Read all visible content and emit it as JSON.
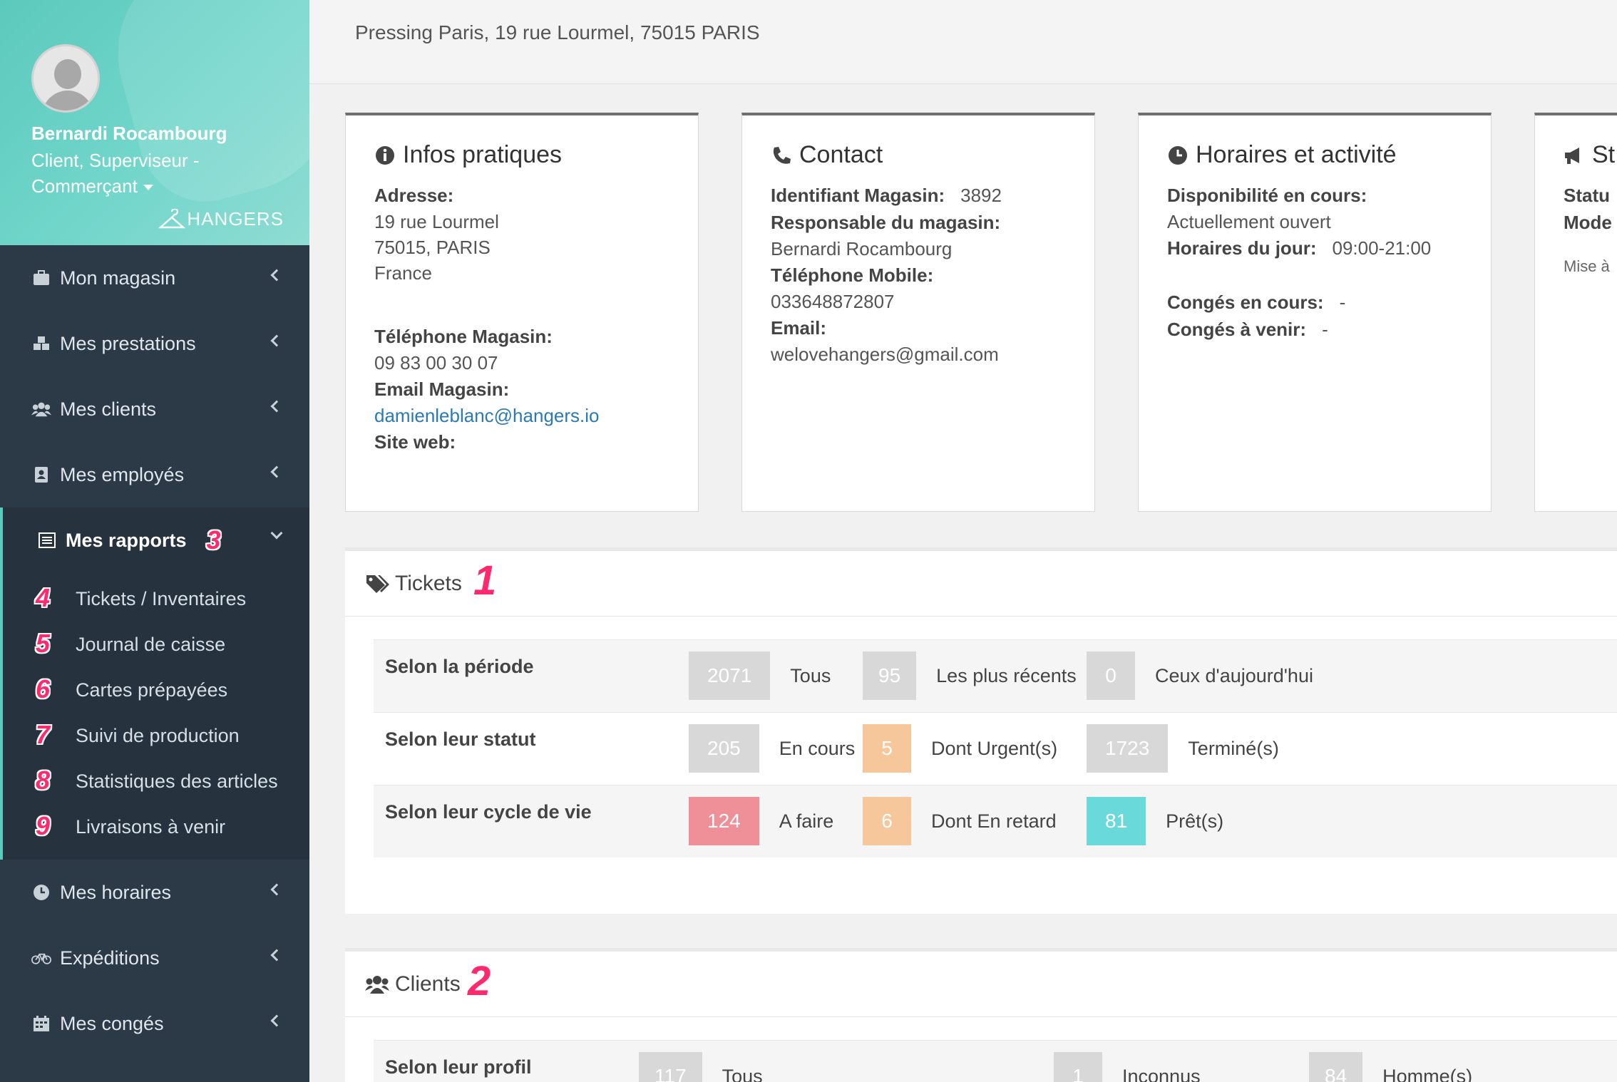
{
  "user": {
    "name": "Bernardi Rocambourg",
    "role_line1": "Client, Superviseur -",
    "role_line2": "Commerçant",
    "brand": "HANGERS"
  },
  "nav": {
    "mon_magasin": "Mon magasin",
    "mes_prestations": "Mes prestations",
    "mes_clients": "Mes clients",
    "mes_employes": "Mes employés",
    "mes_rapports": "Mes rapports",
    "mes_rapports_badge": "3",
    "sub": [
      {
        "badge": "4",
        "label": "Tickets / Inventaires"
      },
      {
        "badge": "5",
        "label": "Journal de caisse"
      },
      {
        "badge": "6",
        "label": "Cartes prépayées"
      },
      {
        "badge": "7",
        "label": "Suivi de production"
      },
      {
        "badge": "8",
        "label": "Statistiques des articles"
      },
      {
        "badge": "9",
        "label": "Livraisons à venir"
      }
    ],
    "mes_horaires": "Mes horaires",
    "expeditions": "Expéditions",
    "mes_conges": "Mes congés"
  },
  "header": {
    "address": "Pressing Paris, 19 rue Lourmel, 75015 PARIS"
  },
  "infos": {
    "title": "Infos pratiques",
    "adresse_label": "Adresse:",
    "adresse_l1": "19 rue Lourmel",
    "adresse_l2": "75015, PARIS",
    "adresse_l3": "France",
    "tel_label": "Téléphone Magasin:",
    "tel_value": "09 83 00 30 07",
    "email_label": "Email Magasin:",
    "email_value": "damienleblanc@hangers.io",
    "site_label": "Site web:"
  },
  "contact": {
    "title": "Contact",
    "id_label": "Identifiant Magasin:",
    "id_value": "3892",
    "resp_label": "Responsable du magasin:",
    "resp_value": "Bernardi Rocambourg",
    "mobile_label": "Téléphone Mobile:",
    "mobile_value": "033648872807",
    "email_label": "Email:",
    "email_value": "welovehangers@gmail.com"
  },
  "horaires": {
    "title": "Horaires et activité",
    "dispo_label": "Disponibilité en cours:",
    "dispo_value": "Actuellement ouvert",
    "jour_label": "Horaires du jour:",
    "jour_value": "09:00-21:00",
    "conges_label": "Congés en cours:",
    "conges_value": "-",
    "avenir_label": "Congés à venir:",
    "avenir_value": "-"
  },
  "statut_card": {
    "title": "St",
    "l1": "Statu",
    "l2": "Mode",
    "l3": "Mise à"
  },
  "tickets": {
    "title": "Tickets",
    "badge": "1",
    "rows": [
      {
        "label": "Selon la période",
        "cells": [
          {
            "value": "2071",
            "text": "Tous"
          },
          {
            "value": "95",
            "text": "Les plus récents"
          },
          {
            "value": "0",
            "text": "Ceux d'aujourd'hui"
          }
        ]
      },
      {
        "label": "Selon leur statut",
        "cells": [
          {
            "value": "205",
            "text": "En cours"
          },
          {
            "value": "5",
            "text": "Dont Urgent(s)"
          },
          {
            "value": "1723",
            "text": "Terminé(s)"
          }
        ]
      },
      {
        "label": "Selon leur cycle de vie",
        "cells": [
          {
            "value": "124",
            "text": "A faire"
          },
          {
            "value": "6",
            "text": "Dont En retard"
          },
          {
            "value": "81",
            "text": "Prêt(s)"
          }
        ]
      }
    ]
  },
  "clients": {
    "title": "Clients",
    "badge": "2",
    "rows": [
      {
        "label": "Selon leur profil",
        "cells": [
          {
            "value": "117",
            "text": "Tous"
          },
          {
            "value": "1",
            "text": "Inconnus"
          },
          {
            "value": "84",
            "text": "Homme(s)"
          }
        ]
      }
    ]
  }
}
